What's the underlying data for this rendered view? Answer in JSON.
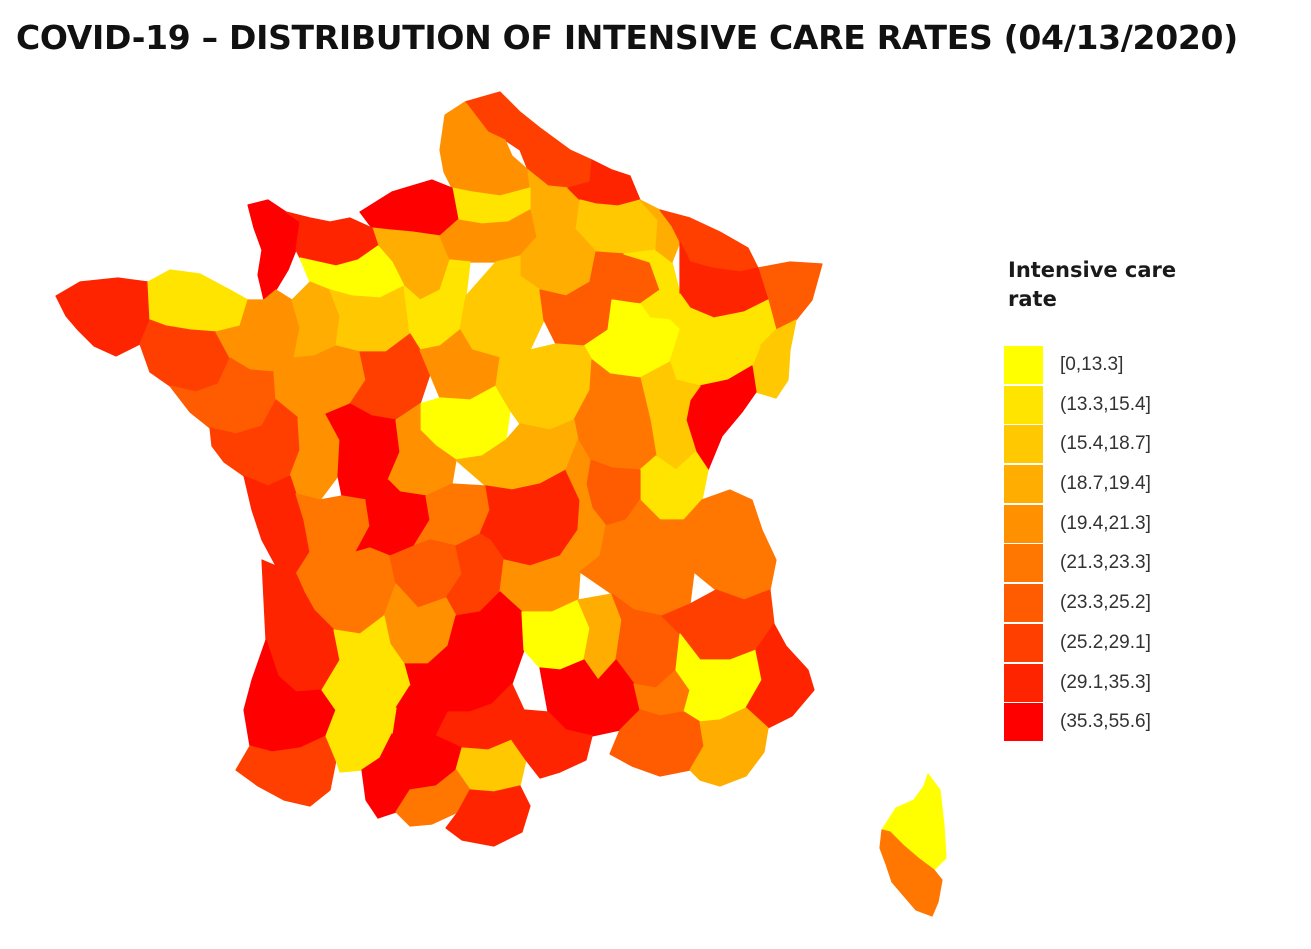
{
  "title": "COVID-19 – DISTRIBUTION OF INTENSIVE CARE RATES (04/13/2020)",
  "legend": {
    "title": "Intensive care rate",
    "items": [
      {
        "label": "[0,13.3]",
        "color": "#ffff00"
      },
      {
        "label": "(13.3,15.4]",
        "color": "#ffe400"
      },
      {
        "label": "(15.4,18.7]",
        "color": "#ffc800"
      },
      {
        "label": "(18.7,19.4]",
        "color": "#ffad00"
      },
      {
        "label": "(19.4,21.3]",
        "color": "#ff9100"
      },
      {
        "label": "(21.3,23.3]",
        "color": "#ff7600"
      },
      {
        "label": "(23.3,25.2]",
        "color": "#ff5b00"
      },
      {
        "label": "(25.2,29.1]",
        "color": "#ff3f00"
      },
      {
        "label": "(29.1,35.3]",
        "color": "#ff2400"
      },
      {
        "label": "(35.3,55.6]",
        "color": "#ff0000"
      }
    ]
  },
  "map": {
    "regions": [
      {
        "name": "nord",
        "class": 7
      },
      {
        "name": "pas-de-calais",
        "class": 4
      },
      {
        "name": "somme",
        "class": 4
      },
      {
        "name": "aisne",
        "class": 3
      },
      {
        "name": "ardennes",
        "class": 8
      },
      {
        "name": "marne",
        "class": 2
      },
      {
        "name": "oise",
        "class": 1
      },
      {
        "name": "seine-maritime",
        "class": 9
      },
      {
        "name": "eure",
        "class": 3
      },
      {
        "name": "manche",
        "class": 9
      },
      {
        "name": "calvados",
        "class": 8
      },
      {
        "name": "orne",
        "class": 0
      },
      {
        "name": "paris-region",
        "class": 4
      },
      {
        "name": "seine-et-marne",
        "class": 3
      },
      {
        "name": "aube",
        "class": 6
      },
      {
        "name": "haute-marne",
        "class": 1
      },
      {
        "name": "meuse",
        "class": 3
      },
      {
        "name": "moselle",
        "class": 7
      },
      {
        "name": "bas-rhin",
        "class": 6
      },
      {
        "name": "meurthe-et-moselle",
        "class": 8
      },
      {
        "name": "vosges",
        "class": 1
      },
      {
        "name": "haut-rhin",
        "class": 2
      },
      {
        "name": "finistere",
        "class": 8
      },
      {
        "name": "cotes-d-armor",
        "class": 1
      },
      {
        "name": "morbihan",
        "class": 7
      },
      {
        "name": "ille-et-vilaine",
        "class": 4
      },
      {
        "name": "mayenne",
        "class": 3
      },
      {
        "name": "sarthe",
        "class": 2
      },
      {
        "name": "eure-et-loir",
        "class": 1
      },
      {
        "name": "loiret",
        "class": 2
      },
      {
        "name": "yonne",
        "class": 6
      },
      {
        "name": "cote-d-or",
        "class": 0
      },
      {
        "name": "haute-saone",
        "class": 1
      },
      {
        "name": "doubs",
        "class": 9
      },
      {
        "name": "jura",
        "class": 2
      },
      {
        "name": "loire-atlantique",
        "class": 6
      },
      {
        "name": "maine-et-loire",
        "class": 4
      },
      {
        "name": "indre-et-loire",
        "class": 7
      },
      {
        "name": "loir-et-cher",
        "class": 4
      },
      {
        "name": "cher",
        "class": 0
      },
      {
        "name": "nievre",
        "class": 2
      },
      {
        "name": "saone-et-loire",
        "class": 5
      },
      {
        "name": "ain",
        "class": 1
      },
      {
        "name": "vendee",
        "class": 7
      },
      {
        "name": "deux-sevres",
        "class": 4
      },
      {
        "name": "vienne",
        "class": 9
      },
      {
        "name": "indre",
        "class": 4
      },
      {
        "name": "allier",
        "class": 3
      },
      {
        "name": "rhone",
        "class": 6
      },
      {
        "name": "haute-savoie",
        "class": 5
      },
      {
        "name": "charente-maritime",
        "class": 8
      },
      {
        "name": "charente",
        "class": 5
      },
      {
        "name": "haute-vienne",
        "class": 9
      },
      {
        "name": "creuse",
        "class": 5
      },
      {
        "name": "puy-de-dome",
        "class": 8
      },
      {
        "name": "loire",
        "class": 4
      },
      {
        "name": "savoie",
        "class": 5
      },
      {
        "name": "dordogne",
        "class": 5
      },
      {
        "name": "correze",
        "class": 6
      },
      {
        "name": "cantal",
        "class": 7
      },
      {
        "name": "haute-loire",
        "class": 4
      },
      {
        "name": "isere",
        "class": 5
      },
      {
        "name": "gironde",
        "class": 8
      },
      {
        "name": "lot",
        "class": 4
      },
      {
        "name": "aveyron",
        "class": 9
      },
      {
        "name": "lozere",
        "class": 0
      },
      {
        "name": "ardeche",
        "class": 3
      },
      {
        "name": "drome",
        "class": 6
      },
      {
        "name": "hautes-alpes",
        "class": 7
      },
      {
        "name": "landes",
        "class": 9
      },
      {
        "name": "lot-et-garonne",
        "class": 1
      },
      {
        "name": "tarn-et-garonne",
        "class": 9
      },
      {
        "name": "tarn",
        "class": 8
      },
      {
        "name": "gard",
        "class": 9
      },
      {
        "name": "vaucluse",
        "class": 5
      },
      {
        "name": "alpes-de-haute-provence",
        "class": 0
      },
      {
        "name": "alpes-maritimes",
        "class": 8
      },
      {
        "name": "pyrenees-atlantiques",
        "class": 7
      },
      {
        "name": "gers",
        "class": 1
      },
      {
        "name": "haute-garonne",
        "class": 9
      },
      {
        "name": "aude",
        "class": 2
      },
      {
        "name": "herault",
        "class": 8
      },
      {
        "name": "bouches-du-rhone",
        "class": 6
      },
      {
        "name": "var",
        "class": 3
      },
      {
        "name": "ariege",
        "class": 5
      },
      {
        "name": "pyrenees-orientales",
        "class": 8
      },
      {
        "name": "haute-corse",
        "class": 0
      },
      {
        "name": "corse-du-sud",
        "class": 5
      }
    ]
  }
}
